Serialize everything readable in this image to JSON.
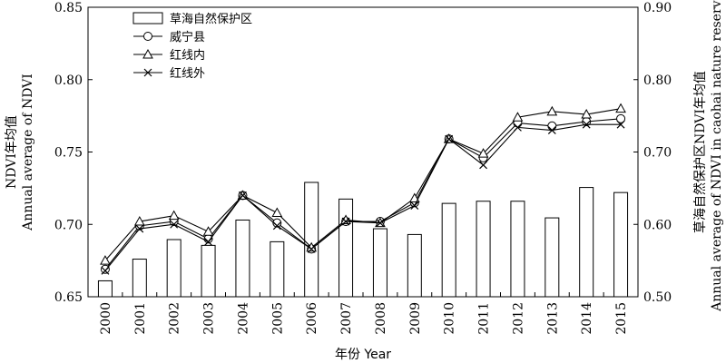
{
  "chart_data": {
    "type": "bar-line",
    "x_title": "年份 Year",
    "categories": [
      "2000",
      "2001",
      "2002",
      "2003",
      "2004",
      "2005",
      "2006",
      "2007",
      "2008",
      "2009",
      "2010",
      "2011",
      "2012",
      "2013",
      "2014",
      "2015"
    ],
    "left_axis": {
      "label_cn": "NDVI年均值",
      "label_en": "Annual average of NDVI",
      "ylim": [
        0.65,
        0.85
      ],
      "ticks": [
        "0.65",
        "0.70",
        "0.75",
        "0.80",
        "0.85"
      ]
    },
    "right_axis": {
      "label_cn": "草海自然保护区NDVI年均值",
      "label_en": "Annual average of NDVI in caohai nature reserve",
      "ylim": [
        0.5,
        0.9
      ],
      "ticks": [
        "0.50",
        "0.60",
        "0.70",
        "0.80",
        "0.90"
      ]
    },
    "bar_series": {
      "name": "草海自然保护区",
      "axis": "right",
      "values": [
        0.522,
        0.552,
        0.579,
        0.571,
        0.606,
        0.576,
        0.658,
        0.635,
        0.594,
        0.586,
        0.629,
        0.632,
        0.632,
        0.609,
        0.651,
        0.644
      ]
    },
    "line_series": [
      {
        "name": "威宁县",
        "marker": "circle",
        "axis": "left",
        "values": [
          0.669,
          0.699,
          0.702,
          0.69,
          0.72,
          0.701,
          0.683,
          0.702,
          0.702,
          0.715,
          0.759,
          0.746,
          0.77,
          0.768,
          0.771,
          0.773
        ]
      },
      {
        "name": "红线内",
        "marker": "triangle",
        "axis": "left",
        "values": [
          0.675,
          0.702,
          0.706,
          0.695,
          0.72,
          0.708,
          0.684,
          0.703,
          0.701,
          0.718,
          0.759,
          0.749,
          0.774,
          0.778,
          0.776,
          0.78
        ]
      },
      {
        "name": "红线外",
        "marker": "x",
        "axis": "left",
        "values": [
          0.668,
          0.697,
          0.7,
          0.688,
          0.72,
          0.699,
          0.683,
          0.702,
          0.701,
          0.713,
          0.759,
          0.741,
          0.767,
          0.765,
          0.769,
          0.769
        ]
      }
    ],
    "legend_position": "top-left",
    "grid": false
  }
}
